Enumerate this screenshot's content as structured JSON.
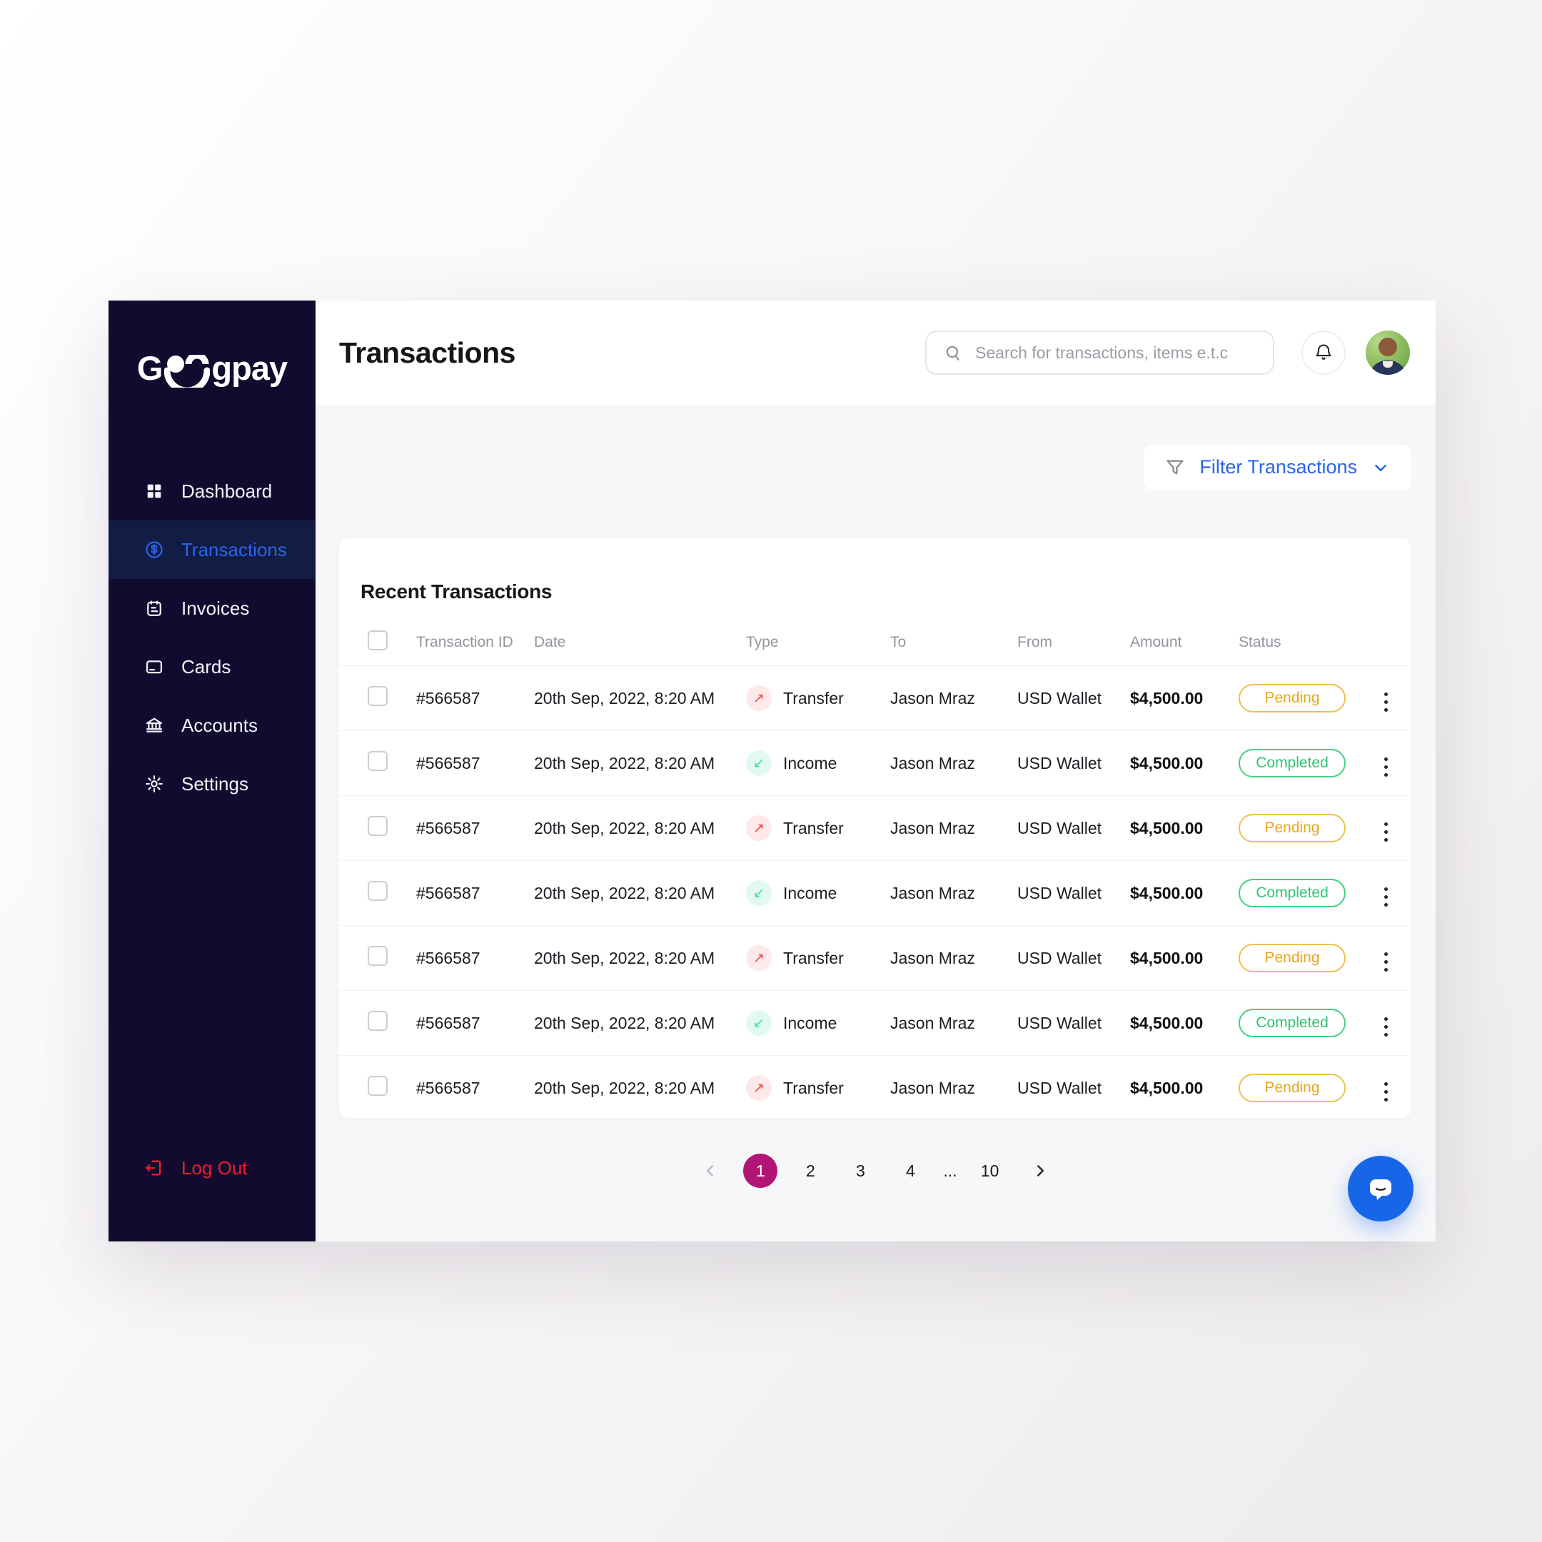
{
  "brand": {
    "full_name": "Geegpay",
    "name_prefix": "G",
    "name_suffix": "gpay"
  },
  "sidebar": {
    "items": [
      {
        "label": "Dashboard",
        "icon": "dashboard-grid-icon",
        "active": false
      },
      {
        "label": "Transactions",
        "icon": "dollar-circle-icon",
        "active": true
      },
      {
        "label": "Invoices",
        "icon": "invoice-icon",
        "active": false
      },
      {
        "label": "Cards",
        "icon": "card-icon",
        "active": false
      },
      {
        "label": "Accounts",
        "icon": "bank-icon",
        "active": false
      },
      {
        "label": "Settings",
        "icon": "gear-icon",
        "active": false
      }
    ],
    "logout_label": "Log Out"
  },
  "header": {
    "title": "Transactions",
    "search_placeholder": "Search for transactions, items e.t.c"
  },
  "toolbar": {
    "filter_label": "Filter Transactions"
  },
  "table": {
    "title": "Recent Transactions",
    "columns": [
      "Transaction ID",
      "Date",
      "Type",
      "To",
      "From",
      "Amount",
      "Status"
    ],
    "rows": [
      {
        "id": "#566587",
        "date": "20th Sep, 2022, 8:20 AM",
        "type": "Transfer",
        "to": "Jason Mraz",
        "from": "USD Wallet",
        "amount": "$4,500.00",
        "status": "Pending"
      },
      {
        "id": "#566587",
        "date": "20th Sep, 2022, 8:20 AM",
        "type": "Income",
        "to": "Jason Mraz",
        "from": "USD Wallet",
        "amount": "$4,500.00",
        "status": "Completed"
      },
      {
        "id": "#566587",
        "date": "20th Sep, 2022, 8:20 AM",
        "type": "Transfer",
        "to": "Jason Mraz",
        "from": "USD Wallet",
        "amount": "$4,500.00",
        "status": "Pending"
      },
      {
        "id": "#566587",
        "date": "20th Sep, 2022, 8:20 AM",
        "type": "Income",
        "to": "Jason Mraz",
        "from": "USD Wallet",
        "amount": "$4,500.00",
        "status": "Completed"
      },
      {
        "id": "#566587",
        "date": "20th Sep, 2022, 8:20 AM",
        "type": "Transfer",
        "to": "Jason Mraz",
        "from": "USD Wallet",
        "amount": "$4,500.00",
        "status": "Pending"
      },
      {
        "id": "#566587",
        "date": "20th Sep, 2022, 8:20 AM",
        "type": "Income",
        "to": "Jason Mraz",
        "from": "USD Wallet",
        "amount": "$4,500.00",
        "status": "Completed"
      },
      {
        "id": "#566587",
        "date": "20th Sep, 2022, 8:20 AM",
        "type": "Transfer",
        "to": "Jason Mraz",
        "from": "USD Wallet",
        "amount": "$4,500.00",
        "status": "Pending"
      }
    ],
    "type_icons": {
      "Transfer": "arrow-up-right-icon",
      "Income": "arrow-down-left-icon"
    },
    "type_glyphs": {
      "Transfer": "↗",
      "Income": "↙"
    }
  },
  "pagination": {
    "pages": [
      "1",
      "2",
      "3",
      "4",
      "...",
      "10"
    ],
    "active_page": "1",
    "prev_icon": "chevron-left-icon",
    "next_icon": "chevron-right-icon"
  },
  "chat": {
    "icon": "chat-bubble-icon"
  },
  "colors": {
    "sidebar_bg": "#120b2f",
    "active_item_bg": "#131c45",
    "accent_blue": "#2a63e9",
    "logout_red": "#ed1c2e",
    "pending_amber": "#e6a61c",
    "completed_green": "#2cc472",
    "transfer_red": "#ee4343",
    "transfer_bg": "#fde9e9",
    "income_teal": "#36dda2",
    "income_bg": "#e2f9f0",
    "pagination_active": "#b11677",
    "chat_fab_blue": "#1766e8",
    "content_bg": "#f7f7f9"
  }
}
